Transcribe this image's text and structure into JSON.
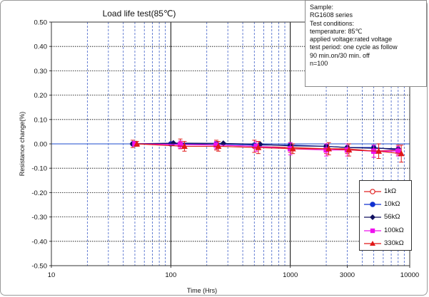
{
  "chart_data": {
    "type": "line",
    "title": "Load life test(85℃)",
    "xlabel": "Time (Hrs)",
    "ylabel": "Resistance change(%)",
    "xscale": "log",
    "xlim": [
      10,
      10000
    ],
    "ylim": [
      -0.5,
      0.5
    ],
    "xticks": [
      10,
      100,
      1000,
      3000,
      10000
    ],
    "xtick_labels": [
      "10",
      "100",
      "1000",
      "3000",
      "10000"
    ],
    "yticks": [
      0.5,
      0.4,
      0.3,
      0.2,
      0.1,
      0.0,
      -0.1,
      -0.2,
      -0.3,
      -0.4,
      -0.5
    ],
    "ytick_labels": [
      "0.50",
      "0.40",
      "0.30",
      "0.20",
      "0.10",
      "0.00",
      "-0.10",
      "-0.20",
      "-0.30",
      "-0.40",
      "-0.50"
    ],
    "grid": true,
    "legend_position": "bottom-right",
    "reference_line": {
      "y": 0,
      "color": "#4a6fd6"
    },
    "series": [
      {
        "name": "1kΩ",
        "color": "#e02020",
        "marker": "circle-open",
        "x": [
          48,
          100,
          120,
          240,
          500,
          1000,
          2000,
          3000,
          5000,
          8000
        ],
        "y": [
          0.0,
          0.0,
          0.0,
          -0.005,
          -0.01,
          -0.015,
          -0.02,
          -0.02,
          -0.03,
          -0.025
        ],
        "err": [
          0.015,
          0.0,
          0.02,
          0.02,
          0.025,
          0.02,
          0.02,
          0.02,
          0.025,
          0.02
        ]
      },
      {
        "name": "10kΩ",
        "color": "#1030d0",
        "marker": "circle",
        "x": [
          48,
          100,
          240,
          500,
          1000,
          2000,
          3000,
          5000,
          8000
        ],
        "y": [
          0.0,
          0.0,
          0.0,
          -0.005,
          -0.005,
          -0.01,
          -0.015,
          -0.015,
          -0.025
        ],
        "err": [
          0.0,
          0.0,
          0.0,
          0.0,
          0.0,
          0.0,
          0.0,
          0.0,
          0.0
        ]
      },
      {
        "name": "56kΩ",
        "color": "#101060",
        "marker": "diamond",
        "x": [
          48,
          105,
          275,
          560,
          1000,
          2000,
          3000,
          5000,
          8000
        ],
        "y": [
          0.0,
          0.003,
          0.002,
          -0.002,
          -0.008,
          -0.01,
          -0.015,
          -0.018,
          -0.02
        ],
        "err": [
          0.0,
          0.0,
          0.0,
          0.0,
          0.0,
          0.0,
          0.0,
          0.0,
          0.0
        ]
      },
      {
        "name": "100kΩ",
        "color": "#ee10ee",
        "marker": "square",
        "x": [
          50,
          120,
          240,
          520,
          1000,
          2000,
          3000,
          5000,
          8000
        ],
        "y": [
          0.0,
          -0.003,
          -0.005,
          -0.01,
          -0.02,
          -0.025,
          -0.025,
          -0.03,
          -0.03
        ],
        "err": [
          0.01,
          0.015,
          0.015,
          0.02,
          0.025,
          0.025,
          0.025,
          0.025,
          0.02
        ]
      },
      {
        "name": "330kΩ",
        "color": "#e01818",
        "marker": "triangle",
        "x": [
          52,
          130,
          250,
          540,
          1050,
          2100,
          3100,
          5500,
          8500
        ],
        "y": [
          0.0,
          -0.01,
          -0.01,
          -0.015,
          -0.02,
          -0.02,
          -0.025,
          -0.03,
          -0.04
        ],
        "err": [
          0.01,
          0.02,
          0.02,
          0.025,
          0.02,
          0.025,
          0.025,
          0.03,
          0.035
        ]
      }
    ]
  },
  "notes": {
    "lines": [
      "Sample:",
      "RG1608 series",
      "Test conditions:",
      "temperature: 85℃",
      "applied voltage:rated voltage",
      "test period: one cycle as follow",
      "90 min.on/30 min. off",
      "n=100"
    ]
  }
}
